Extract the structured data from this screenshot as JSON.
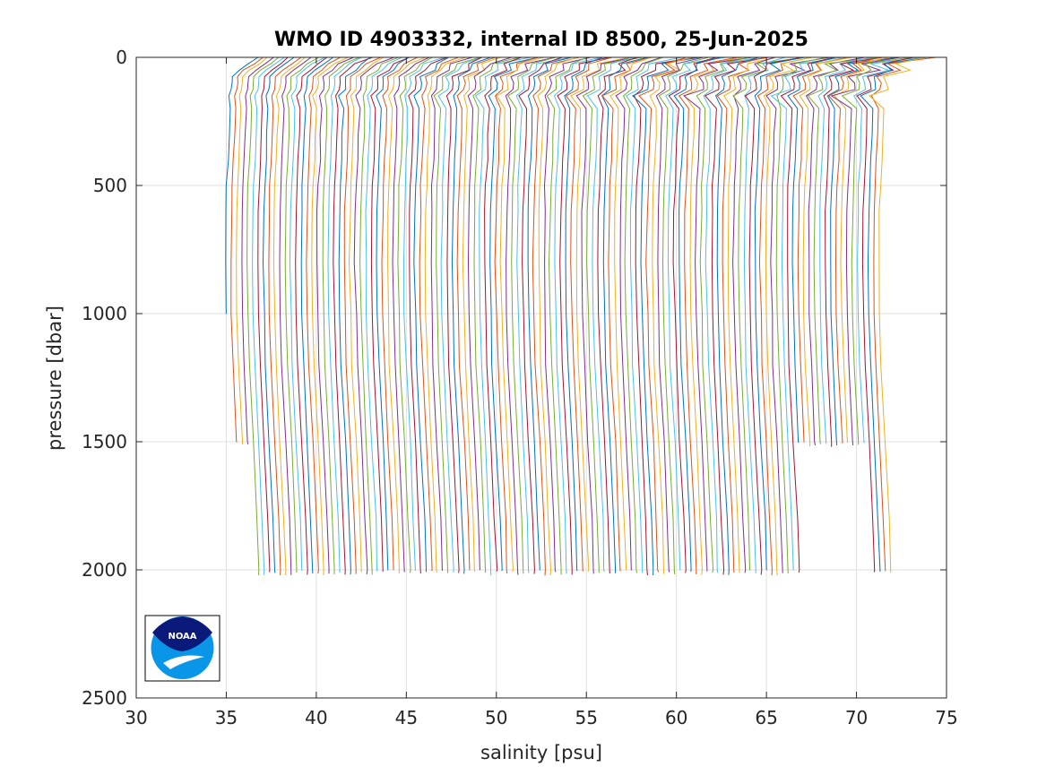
{
  "chart_data": {
    "type": "line",
    "title": "WMO ID 4903332, internal ID 8500, 25-Jun-2025",
    "xlabel": "salinity [psu]",
    "ylabel": "pressure [dbar]",
    "xlim": [
      30,
      75
    ],
    "ylim": [
      0,
      2500
    ],
    "y_reversed": true,
    "grid": true,
    "xticks": [
      "30",
      "35",
      "40",
      "45",
      "50",
      "55",
      "60",
      "65",
      "70",
      "75"
    ],
    "yticks": [
      "0",
      "500",
      "1000",
      "1500",
      "2000",
      "2500"
    ],
    "offset_per_profile_psu": 0.3,
    "profile_count": 122,
    "profile_shape": {
      "pressure": [
        0,
        25,
        50,
        75,
        100,
        125,
        150,
        200,
        300,
        400,
        500,
        600,
        800,
        1000,
        1200,
        1500,
        1800,
        2000
      ],
      "salinity": [
        36.5,
        36.3,
        35.6,
        35.35,
        35.3,
        35.25,
        35.22,
        35.2,
        35.15,
        35.1,
        35.02,
        34.98,
        34.95,
        35.0,
        35.08,
        35.3,
        35.5,
        35.6
      ]
    },
    "series_colors": [
      "#0072bd",
      "#d95319",
      "#edb120",
      "#7e2f8e",
      "#77ac30",
      "#4dbeee",
      "#a2142f"
    ]
  },
  "logo": {
    "name": "NOAA",
    "text": "NOAA",
    "colors": {
      "dark": "#0a1a7a",
      "light": "#0a96e8"
    }
  }
}
